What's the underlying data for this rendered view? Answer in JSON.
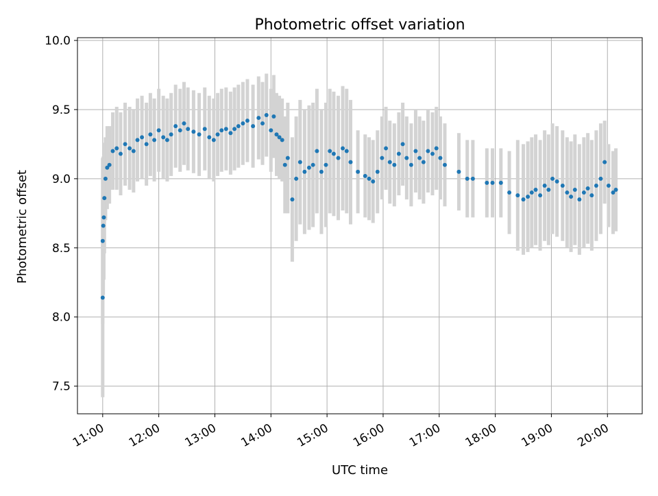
{
  "chart_data": {
    "type": "scatter",
    "title": "Photometric offset variation",
    "xlabel": "UTC time",
    "ylabel": "Photometric offset",
    "x_unit": "hours UTC",
    "xlim": [
      10.55,
      20.62
    ],
    "ylim": [
      7.3,
      10.02
    ],
    "x_ticks": [
      11,
      12,
      13,
      14,
      15,
      16,
      17,
      18,
      19,
      20
    ],
    "x_tick_labels": [
      "11:00",
      "12:00",
      "13:00",
      "14:00",
      "15:00",
      "16:00",
      "17:00",
      "18:00",
      "19:00",
      "20:00"
    ],
    "y_ticks": [
      7.5,
      8.0,
      8.5,
      9.0,
      9.5,
      10.0
    ],
    "y_tick_labels": [
      "7.5",
      "8.0",
      "8.5",
      "9.0",
      "9.5",
      "10.0"
    ],
    "grid": true,
    "marker_color": "#1f77b4",
    "errorbar_color": "#d3d3d3",
    "series": [
      {
        "x": [
          11.0,
          11.0,
          11.01,
          11.02,
          11.03,
          11.05,
          11.08,
          11.12,
          11.18,
          11.25,
          11.32,
          11.4,
          11.48,
          11.55,
          11.62,
          11.7,
          11.78,
          11.85,
          11.92,
          12.0,
          12.08,
          12.15,
          12.22,
          12.3,
          12.38,
          12.45,
          12.52,
          12.62,
          12.72,
          12.82,
          12.9,
          12.98,
          13.05,
          13.12,
          13.2,
          13.28,
          13.35,
          13.42,
          13.5,
          13.58,
          13.68,
          13.78,
          13.85,
          13.92,
          14.0,
          14.05,
          14.1,
          14.15,
          14.2,
          14.25,
          14.3,
          14.38,
          14.45,
          14.52,
          14.6,
          14.68,
          14.75,
          14.82,
          14.9,
          14.98,
          15.05,
          15.12,
          15.2,
          15.28,
          15.35,
          15.42,
          15.55,
          15.68,
          15.75,
          15.82,
          15.9,
          15.98,
          16.05,
          16.12,
          16.2,
          16.28,
          16.35,
          16.42,
          16.5,
          16.58,
          16.65,
          16.72,
          16.8,
          16.88,
          16.95,
          17.02,
          17.1,
          17.35,
          17.5,
          17.6,
          17.85,
          17.95,
          18.1,
          18.25,
          18.4,
          18.5,
          18.58,
          18.65,
          18.72,
          18.8,
          18.88,
          18.95,
          19.02,
          19.1,
          19.2,
          19.28,
          19.35,
          19.42,
          19.5,
          19.58,
          19.65,
          19.72,
          19.8,
          19.88,
          19.95,
          20.02,
          20.1,
          20.15
        ],
        "y": [
          8.14,
          8.55,
          8.66,
          8.72,
          8.86,
          9.0,
          9.08,
          9.1,
          9.2,
          9.22,
          9.18,
          9.25,
          9.22,
          9.2,
          9.28,
          9.3,
          9.25,
          9.32,
          9.28,
          9.35,
          9.3,
          9.28,
          9.32,
          9.38,
          9.35,
          9.4,
          9.36,
          9.34,
          9.32,
          9.36,
          9.3,
          9.28,
          9.32,
          9.35,
          9.36,
          9.33,
          9.36,
          9.38,
          9.4,
          9.42,
          9.38,
          9.44,
          9.4,
          9.46,
          9.35,
          9.45,
          9.32,
          9.3,
          9.28,
          9.1,
          9.15,
          8.85,
          9.0,
          9.12,
          9.05,
          9.08,
          9.1,
          9.2,
          9.05,
          9.1,
          9.2,
          9.18,
          9.15,
          9.22,
          9.2,
          9.12,
          9.05,
          9.02,
          9.0,
          8.98,
          9.05,
          9.15,
          9.22,
          9.12,
          9.1,
          9.18,
          9.25,
          9.15,
          9.1,
          9.2,
          9.15,
          9.12,
          9.2,
          9.18,
          9.22,
          9.15,
          9.1,
          9.05,
          9.0,
          9.0,
          8.97,
          8.97,
          8.97,
          8.9,
          8.88,
          8.85,
          8.87,
          8.9,
          8.92,
          8.88,
          8.95,
          8.92,
          9.0,
          8.98,
          8.95,
          8.9,
          8.87,
          8.92,
          8.85,
          8.9,
          8.93,
          8.88,
          8.95,
          9.0,
          9.12,
          8.95,
          8.9,
          8.92
        ],
        "error": [
          0.72,
          0.6,
          0.5,
          0.45,
          0.4,
          0.3,
          0.3,
          0.28,
          0.28,
          0.3,
          0.3,
          0.3,
          0.3,
          0.3,
          0.3,
          0.3,
          0.3,
          0.3,
          0.3,
          0.3,
          0.3,
          0.3,
          0.3,
          0.3,
          0.3,
          0.3,
          0.3,
          0.3,
          0.3,
          0.3,
          0.3,
          0.3,
          0.3,
          0.3,
          0.3,
          0.3,
          0.3,
          0.3,
          0.3,
          0.3,
          0.3,
          0.3,
          0.3,
          0.3,
          0.3,
          0.3,
          0.3,
          0.3,
          0.3,
          0.35,
          0.4,
          0.45,
          0.45,
          0.45,
          0.45,
          0.45,
          0.45,
          0.45,
          0.45,
          0.45,
          0.45,
          0.45,
          0.45,
          0.45,
          0.45,
          0.45,
          0.3,
          0.3,
          0.3,
          0.3,
          0.3,
          0.3,
          0.3,
          0.3,
          0.3,
          0.3,
          0.3,
          0.3,
          0.3,
          0.3,
          0.3,
          0.3,
          0.3,
          0.3,
          0.3,
          0.3,
          0.3,
          0.28,
          0.28,
          0.28,
          0.25,
          0.25,
          0.25,
          0.3,
          0.4,
          0.4,
          0.4,
          0.4,
          0.4,
          0.4,
          0.4,
          0.4,
          0.4,
          0.4,
          0.4,
          0.4,
          0.4,
          0.4,
          0.4,
          0.4,
          0.4,
          0.4,
          0.4,
          0.4,
          0.3,
          0.3,
          0.3,
          0.3
        ]
      }
    ]
  }
}
